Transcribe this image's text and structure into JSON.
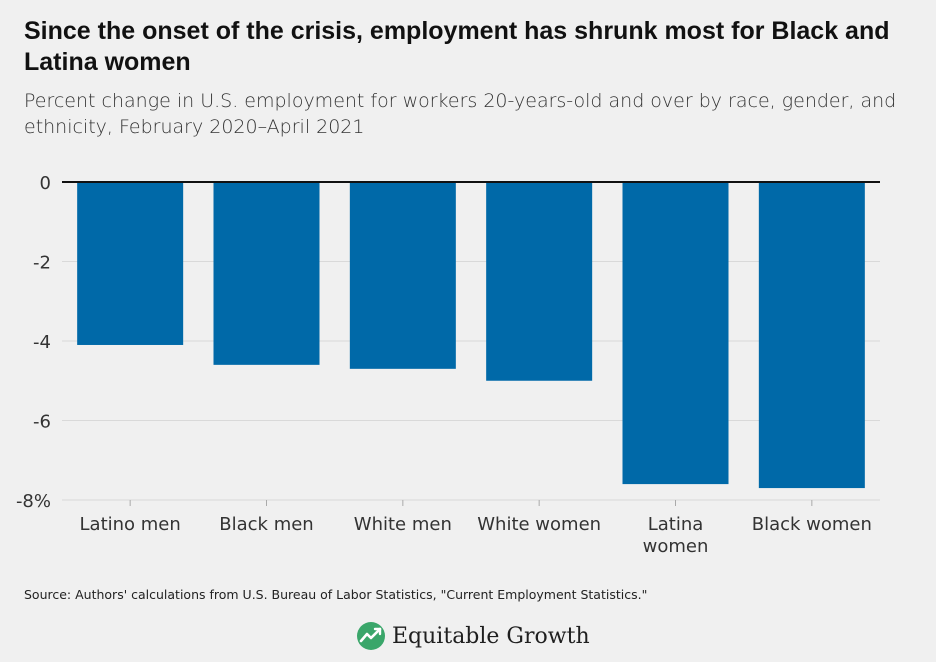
{
  "title": "Since the onset of the crisis, employment has shrunk most for Black and Latina women",
  "subtitle": "Percent change in U.S. employment for workers 20-years-old and over by race, gender, and ethnicity, February 2020–April 2021",
  "source": "Source: Authors' calculations from U.S. Bureau of Labor Statistics, \"Current Employment Statistics.\"",
  "brand": "Equitable Growth",
  "colors": {
    "bar": "#0069a8",
    "background": "#f0f0f0",
    "logo_green": "#3aa66a"
  },
  "chart_data": {
    "type": "bar",
    "categories": [
      "Latino men",
      "Black men",
      "White men",
      "White women",
      "Latina women",
      "Black women"
    ],
    "category_lines": [
      [
        "Latino men"
      ],
      [
        "Black men"
      ],
      [
        "White men"
      ],
      [
        "White women"
      ],
      [
        "Latina",
        "women"
      ],
      [
        "Black women"
      ]
    ],
    "values": [
      -4.1,
      -4.6,
      -4.7,
      -5.0,
      -7.6,
      -7.7
    ],
    "ylim": [
      -8,
      0
    ],
    "yticks": [
      0,
      -2,
      -4,
      -6,
      -8
    ],
    "ytick_labels": [
      "0",
      "-2",
      "-4",
      "-6",
      "-8%"
    ],
    "grid": true
  }
}
